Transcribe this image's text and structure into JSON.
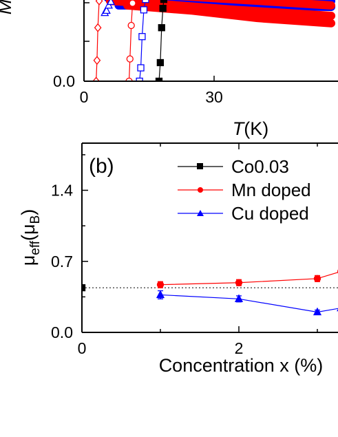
{
  "chart_data": [
    {
      "panel": "a",
      "type": "line",
      "xlabel_italic": "T",
      "xlabel_rest": "(K)",
      "ylabel_fragment": "M",
      "xlim": [
        0,
        57
      ],
      "ylim_visible_min": 0.0,
      "x_ticks": [
        0,
        30
      ],
      "x_tick_labels": [
        "0",
        "30"
      ],
      "y_ticks": [
        0.0
      ],
      "y_tick_labels": [
        "0.0"
      ],
      "series": [
        {
          "color": "#000000",
          "marker": "square-filled",
          "points": [
            [
              17.3,
              0.0
            ],
            [
              17.6,
              0.25
            ],
            [
              17.9,
              0.72
            ],
            [
              18.2,
              0.98
            ],
            [
              18.4,
              1.1
            ]
          ]
        },
        {
          "color": "#0000ff",
          "marker": "square-open",
          "points": [
            [
              12.8,
              0.0
            ],
            [
              13.1,
              0.18
            ],
            [
              13.4,
              0.6
            ],
            [
              13.8,
              0.96
            ],
            [
              14.2,
              1.1
            ]
          ]
        },
        {
          "color": "#ff0000",
          "marker": "circle-open",
          "points": [
            [
              10.4,
              0.0
            ],
            [
              10.6,
              0.3
            ],
            [
              10.9,
              0.75
            ],
            [
              11.2,
              1.05
            ]
          ]
        },
        {
          "color": "#0000ff",
          "marker": "triangle-open",
          "points": [
            [
              4.8,
              0.92
            ],
            [
              5.2,
              0.95
            ],
            [
              5.7,
              1.02
            ],
            [
              6.2,
              1.07
            ]
          ]
        },
        {
          "color": "#ff0000",
          "marker": "diamond-open",
          "points": [
            [
              2.8,
              0.0
            ],
            [
              3.0,
              0.28
            ],
            [
              3.2,
              0.72
            ],
            [
              3.5,
              1.08
            ]
          ]
        }
      ],
      "bands": [
        {
          "color": "#0000ff",
          "points": [
            [
              5.5,
              1.22
            ],
            [
              8,
              1.29
            ],
            [
              20,
              1.27
            ],
            [
              40,
              1.24
            ],
            [
              57,
              1.22
            ]
          ]
        },
        {
          "color": "#0000ff",
          "points": [
            [
              5.5,
              1.12
            ],
            [
              12,
              1.13
            ],
            [
              30,
              1.11
            ],
            [
              57,
              1.08
            ]
          ]
        },
        {
          "color": "#0000ff",
          "points": [
            [
              8,
              1.02
            ],
            [
              20,
              1.02
            ],
            [
              40,
              1.01
            ],
            [
              57,
              1.0
            ]
          ]
        },
        {
          "color": "#ff0000",
          "points": [
            [
              5,
              1.18
            ],
            [
              15,
              1.17
            ],
            [
              35,
              1.1
            ],
            [
              57,
              1.02
            ]
          ]
        },
        {
          "color": "#ff0000",
          "points": [
            [
              6,
              1.08
            ],
            [
              15,
              1.05
            ],
            [
              35,
              0.96
            ],
            [
              57,
              0.88
            ]
          ]
        },
        {
          "color": "#ff0000",
          "points": [
            [
              10,
              1.02
            ],
            [
              25,
              0.95
            ],
            [
              40,
              0.85
            ],
            [
              57,
              0.78
            ]
          ]
        }
      ]
    },
    {
      "panel": "b",
      "type": "line",
      "panel_label": "(b)",
      "xlabel": "Concentration x (%)",
      "ylabel_main": "μ",
      "ylabel_sub": "eff",
      "ylabel_paren_open": "(μ",
      "ylabel_sub2": "B",
      "ylabel_paren_close": ")",
      "xlim": [
        0,
        3.3
      ],
      "ylim": [
        0.0,
        1.85
      ],
      "x_ticks": [
        0,
        2
      ],
      "x_tick_labels": [
        "0",
        "2"
      ],
      "y_ticks": [
        0.0,
        0.7,
        1.4
      ],
      "y_tick_labels": [
        "0.0",
        "0.7",
        "1.4"
      ],
      "reference_line": {
        "y": 0.44,
        "style": "dotted"
      },
      "series": [
        {
          "name": "Co0.03",
          "color": "#000000",
          "marker": "square",
          "x": [
            0
          ],
          "y": [
            0.44
          ],
          "err": [
            0.02
          ]
        },
        {
          "name": "Mn doped",
          "color": "#ff0000",
          "marker": "circle",
          "x": [
            1,
            2,
            3,
            3.3
          ],
          "y": [
            0.47,
            0.49,
            0.53,
            0.6
          ],
          "err": [
            0.03,
            0.03,
            0.03,
            0.0
          ]
        },
        {
          "name": "Cu doped",
          "color": "#0000ff",
          "marker": "triangle",
          "x": [
            1,
            2,
            3,
            3.3
          ],
          "y": [
            0.37,
            0.33,
            0.2,
            0.24
          ],
          "err": [
            0.04,
            0.03,
            0.02,
            0.0
          ]
        }
      ],
      "legend_placement": "top-right"
    }
  ]
}
